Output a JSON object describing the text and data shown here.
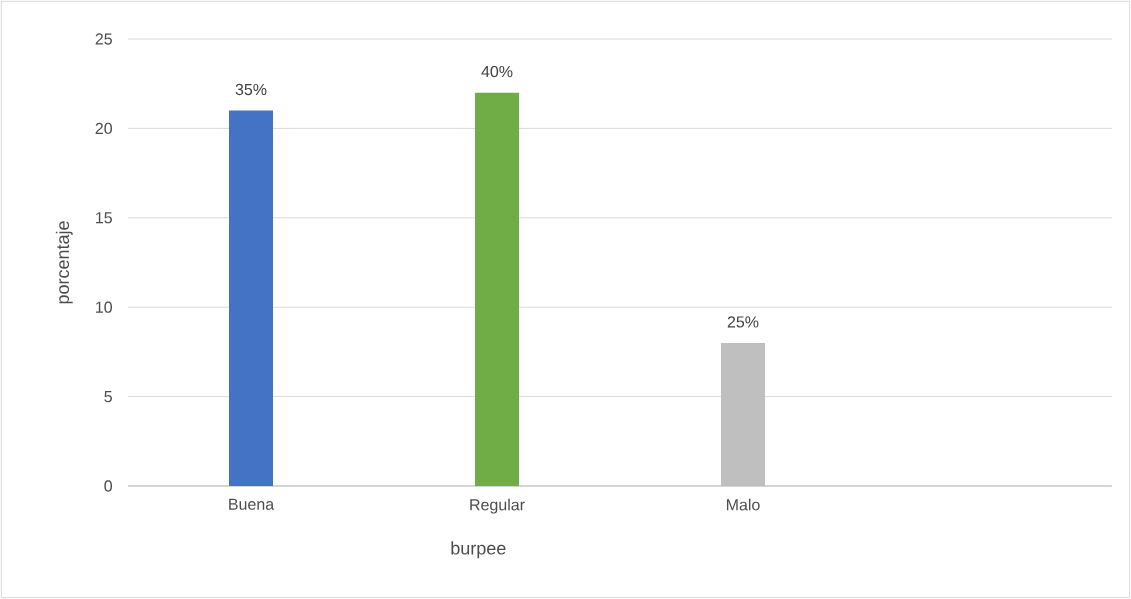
{
  "chart_data": {
    "type": "bar",
    "xlabel": "burpee",
    "ylabel": "porcentaje",
    "categories": [
      "Buena",
      "Regular",
      "Malo",
      null
    ],
    "values": [
      21,
      22,
      8,
      null
    ],
    "colors": [
      "#4472c4",
      "#70ad47",
      "#bfbfbf",
      "#bfbfbf"
    ],
    "annotations": [
      {
        "text": "35%",
        "x": "Buena",
        "y": 21
      },
      {
        "text": "40%",
        "x": "Regular",
        "y": 22
      },
      {
        "text": "25%",
        "x": "Malo",
        "y": 8
      }
    ],
    "ylim": [
      0,
      25
    ],
    "yticks": [
      0,
      5,
      10,
      15,
      20,
      25
    ],
    "grid": "y"
  }
}
